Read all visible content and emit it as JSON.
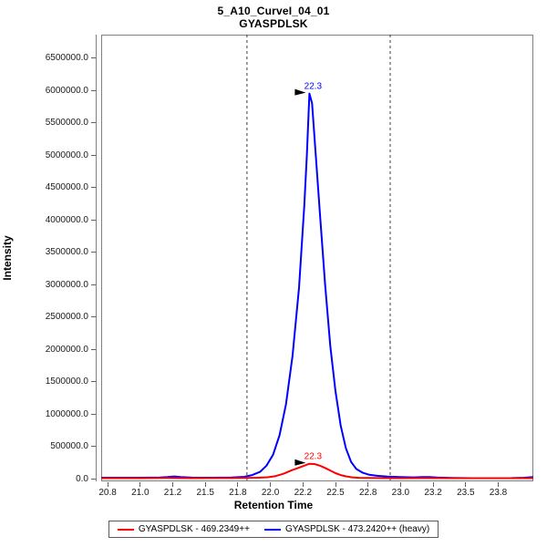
{
  "header": {
    "title": "5_A10_CurveI_04_01",
    "subtitle": "GYASPDLSK"
  },
  "chart_data": {
    "type": "line",
    "title": "5_A10_CurveI_04_01",
    "subtitle": "GYASPDLSK",
    "xlabel": "Retention Time",
    "ylabel": "Intensity",
    "xlim": [
      20.7,
      24.02
    ],
    "ylim": [
      -42000,
      6860000
    ],
    "grid": false,
    "legend_position": "bottom",
    "axis_color": "#808080",
    "boundary_color": "#3c3c3c",
    "annotation_arrow_color": "#000000",
    "integration_boundaries": [
      21.82,
      22.92
    ],
    "x_ticks": [
      {
        "value": 20.75,
        "label": "20.8"
      },
      {
        "value": 21.0,
        "label": "21.0"
      },
      {
        "value": 21.25,
        "label": "21.2"
      },
      {
        "value": 21.5,
        "label": "21.5"
      },
      {
        "value": 21.75,
        "label": "21.8"
      },
      {
        "value": 22.0,
        "label": "22.0"
      },
      {
        "value": 22.25,
        "label": "22.2"
      },
      {
        "value": 22.5,
        "label": "22.5"
      },
      {
        "value": 22.75,
        "label": "22.8"
      },
      {
        "value": 23.0,
        "label": "23.0"
      },
      {
        "value": 23.25,
        "label": "23.2"
      },
      {
        "value": 23.5,
        "label": "23.5"
      },
      {
        "value": 23.75,
        "label": "23.8"
      }
    ],
    "y_ticks": [
      {
        "value": 0,
        "label": "0.0"
      },
      {
        "value": 500000,
        "label": "500000.0"
      },
      {
        "value": 1000000,
        "label": "1000000.0"
      },
      {
        "value": 1500000,
        "label": "1500000.0"
      },
      {
        "value": 2000000,
        "label": "2000000.0"
      },
      {
        "value": 2500000,
        "label": "2500000.0"
      },
      {
        "value": 3000000,
        "label": "3000000.0"
      },
      {
        "value": 3500000,
        "label": "3500000.0"
      },
      {
        "value": 4000000,
        "label": "4000000.0"
      },
      {
        "value": 4500000,
        "label": "4500000.0"
      },
      {
        "value": 5000000,
        "label": "5000000.0"
      },
      {
        "value": 5500000,
        "label": "5500000.0"
      },
      {
        "value": 6000000,
        "label": "6000000.0"
      },
      {
        "value": 6500000,
        "label": "6500000.0"
      }
    ],
    "series": [
      {
        "id": "light",
        "name": "GYASPDLSK - 469.2349++",
        "color": "#FF0000",
        "peak_annotation": {
          "label": "22.3",
          "rt": 22.3,
          "intensity": 230000
        },
        "points": [
          [
            20.7,
            8000
          ],
          [
            21.0,
            8000
          ],
          [
            21.2,
            10000
          ],
          [
            21.4,
            8000
          ],
          [
            21.6,
            9000
          ],
          [
            21.8,
            10000
          ],
          [
            21.9,
            14000
          ],
          [
            21.98,
            22000
          ],
          [
            22.04,
            40000
          ],
          [
            22.1,
            75000
          ],
          [
            22.16,
            125000
          ],
          [
            22.22,
            170000
          ],
          [
            22.26,
            200000
          ],
          [
            22.3,
            230000
          ],
          [
            22.34,
            226000
          ],
          [
            22.38,
            200000
          ],
          [
            22.42,
            165000
          ],
          [
            22.46,
            125000
          ],
          [
            22.5,
            85000
          ],
          [
            22.54,
            55000
          ],
          [
            22.58,
            35000
          ],
          [
            22.63,
            20000
          ],
          [
            22.68,
            13000
          ],
          [
            22.75,
            10000
          ],
          [
            22.85,
            9000
          ],
          [
            23.0,
            8000
          ],
          [
            23.2,
            9000
          ],
          [
            23.4,
            8000
          ],
          [
            23.6,
            8000
          ],
          [
            23.8,
            8000
          ],
          [
            24.02,
            8000
          ]
        ]
      },
      {
        "id": "heavy",
        "name": "GYASPDLSK - 473.2420++ (heavy)",
        "color": "#0000FF",
        "peak_annotation": {
          "label": "22.3",
          "rt": 22.3,
          "intensity": 5950000
        },
        "points": [
          [
            20.7,
            15000
          ],
          [
            20.85,
            14000
          ],
          [
            21.0,
            15000
          ],
          [
            21.15,
            17000
          ],
          [
            21.21,
            24000
          ],
          [
            21.26,
            34000
          ],
          [
            21.31,
            24000
          ],
          [
            21.4,
            16000
          ],
          [
            21.55,
            15000
          ],
          [
            21.7,
            17000
          ],
          [
            21.8,
            28000
          ],
          [
            21.86,
            55000
          ],
          [
            21.92,
            105000
          ],
          [
            21.97,
            200000
          ],
          [
            22.02,
            370000
          ],
          [
            22.07,
            670000
          ],
          [
            22.12,
            1150000
          ],
          [
            22.17,
            1900000
          ],
          [
            22.22,
            2950000
          ],
          [
            22.26,
            4200000
          ],
          [
            22.28,
            5000000
          ],
          [
            22.3,
            5950000
          ],
          [
            22.32,
            5800000
          ],
          [
            22.35,
            4950000
          ],
          [
            22.38,
            4100000
          ],
          [
            22.42,
            3000000
          ],
          [
            22.46,
            2050000
          ],
          [
            22.5,
            1350000
          ],
          [
            22.54,
            820000
          ],
          [
            22.58,
            470000
          ],
          [
            22.62,
            260000
          ],
          [
            22.66,
            150000
          ],
          [
            22.71,
            90000
          ],
          [
            22.76,
            60000
          ],
          [
            22.82,
            44000
          ],
          [
            22.9,
            32000
          ],
          [
            23.0,
            26000
          ],
          [
            23.1,
            20000
          ],
          [
            23.17,
            24000
          ],
          [
            23.22,
            26000
          ],
          [
            23.28,
            17000
          ],
          [
            23.4,
            11000
          ],
          [
            23.55,
            8000
          ],
          [
            23.7,
            7000
          ],
          [
            23.85,
            9000
          ],
          [
            23.95,
            15000
          ],
          [
            24.02,
            24000
          ]
        ]
      }
    ]
  }
}
